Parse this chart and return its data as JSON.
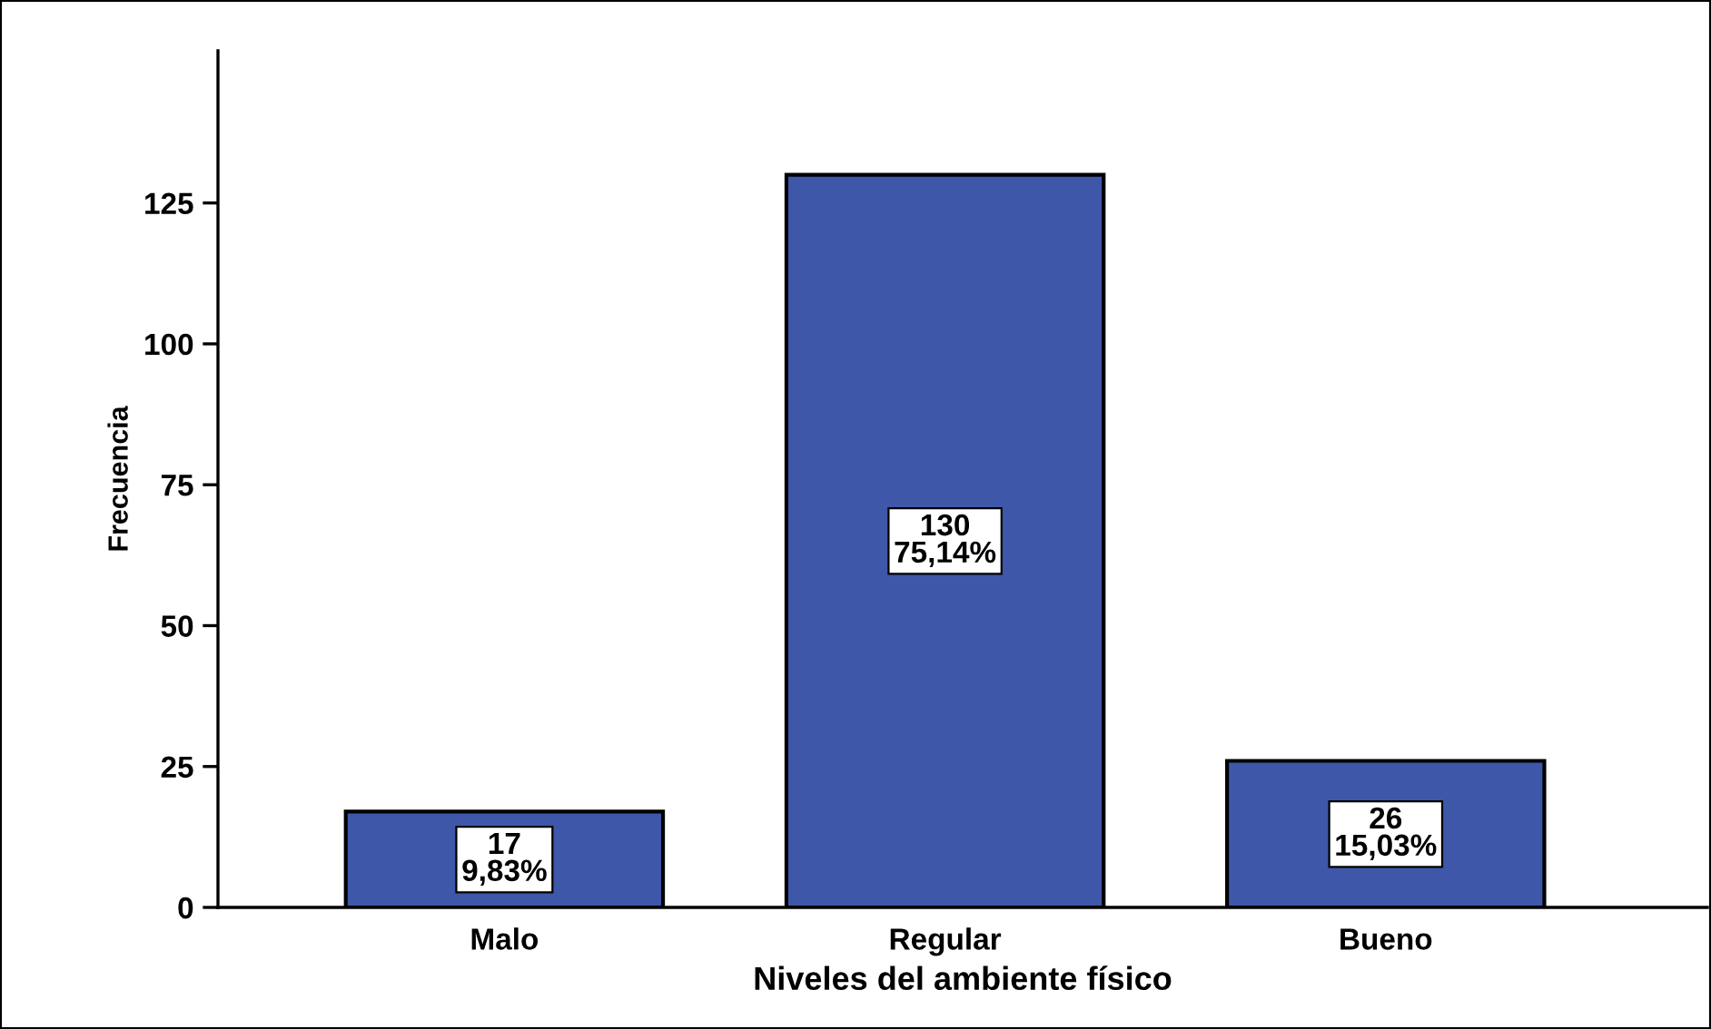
{
  "chart_data": {
    "type": "bar",
    "xlabel": "Niveles del ambiente físico",
    "ylabel": "Frecuencia",
    "categories": [
      "Malo",
      "Regular",
      "Bueno"
    ],
    "values": [
      17,
      130,
      26
    ],
    "color": "#3f57a8",
    "value_labels": [
      "17\n9,83%",
      "130\n75,14%",
      "26\n15,03%"
    ],
    "ylim": [
      0,
      152
    ],
    "yticks": [
      0,
      25,
      50,
      75,
      100,
      125
    ],
    "grid": false,
    "legend": false
  }
}
